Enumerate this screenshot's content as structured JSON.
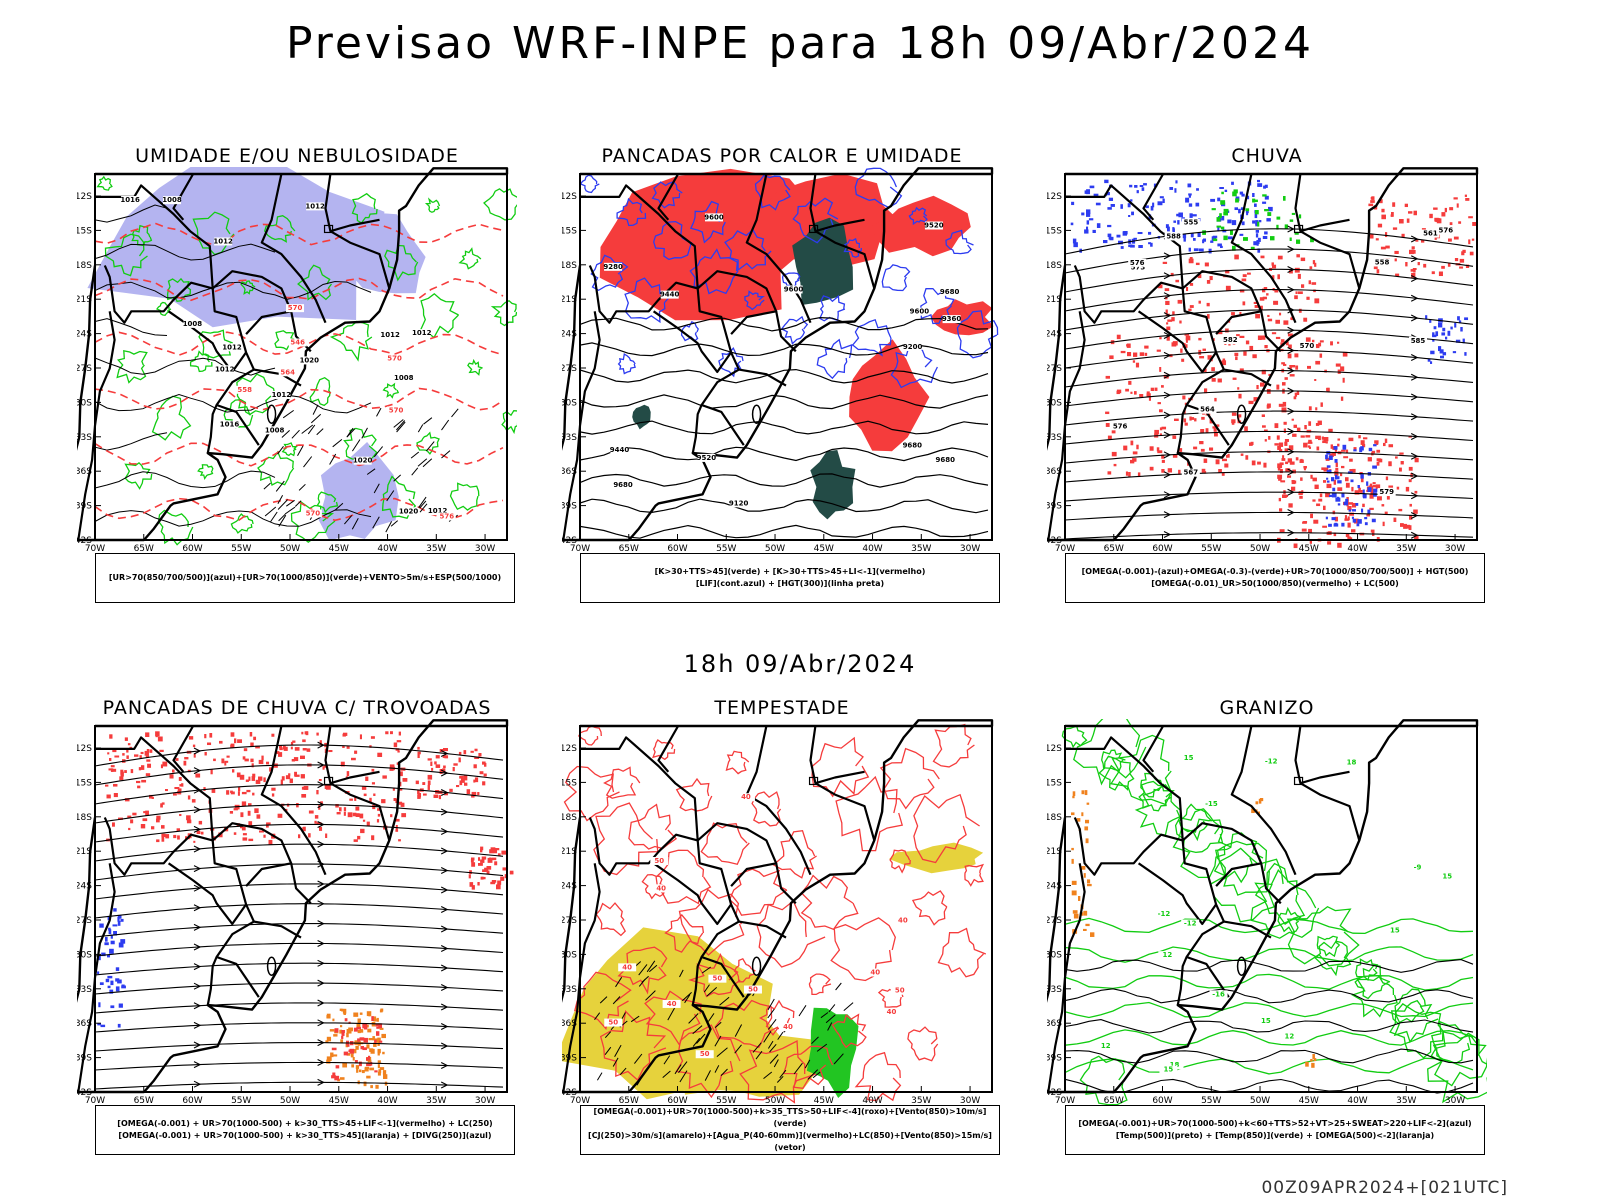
{
  "page": {
    "main_title": "Previsao WRF-INPE  para 18h 09/Abr/2024",
    "mid_title": "18h 09/Abr/2024",
    "footer_code": "00Z09APR2024+[021UTC]"
  },
  "axes": {
    "lat_labels": [
      "12S",
      "15S",
      "18S",
      "21S",
      "24S",
      "27S",
      "30S",
      "33S",
      "36S",
      "39S",
      "42S"
    ],
    "lon_labels": [
      "70W",
      "65W",
      "60W",
      "55W",
      "50W",
      "45W",
      "40W",
      "35W",
      "30W"
    ]
  },
  "colors": {
    "humidity_blue": "#b4b4f0",
    "green_contour": "#11cc11",
    "red": "#f53c3c",
    "dark_teal": "#234b46",
    "blue_contour": "#2d3cf0",
    "yellow": "#e6d23c",
    "orange": "#f0821e",
    "black": "#000000"
  },
  "panels": [
    {
      "id": "umidade",
      "title": "UMIDADE E/OU NEBULOSIDADE",
      "legend": [
        "[UR>70(850/700/500)](azul)+[UR>70(1000/850)](verde)+VENTO>5m/s+ESP(500/1000)"
      ],
      "contour_labels": [
        "1012",
        "1008",
        "1008",
        "1008",
        "1012",
        "1012",
        "1008",
        "1012",
        "1016",
        "1012",
        "1012",
        "1012",
        "1016",
        "1020",
        "1012",
        "1020",
        "1020",
        "570",
        "576",
        "570",
        "570",
        "570",
        "564",
        "558",
        "546"
      ]
    },
    {
      "id": "pancadas-calor",
      "title": "PANCADAS POR CALOR E UMIDADE",
      "legend": [
        "[K>30+TTS>45](verde) + [K>30+TTS>45+LI<-1](vermelho)",
        "[LIF](cont.azul) + [HGT(300)](linha preta)"
      ],
      "contour_labels": [
        "9680",
        "9680",
        "9680",
        "9600",
        "9680",
        "9600",
        "9600",
        "9520",
        "9520",
        "9440",
        "9360",
        "9280",
        "9200",
        "9120",
        "9440"
      ]
    },
    {
      "id": "chuva",
      "title": "CHUVA",
      "legend": [
        "[OMEGA(-0.001)-(azul)+OMEGA(-0.3)-(verde)+UR>70(1000/850/700/500)] + HGT(500)",
        "[OMEGA(-0.01)_UR>50(1000/850)(vermelho) + LC(500)"
      ],
      "contour_labels": [
        "588",
        "585",
        "582",
        "579",
        "576",
        "573",
        "570",
        "567",
        "564",
        "561",
        "558",
        "555",
        "576",
        "576"
      ]
    },
    {
      "id": "pancadas-trovoadas",
      "title": "PANCADAS DE CHUVA C/ TROVOADAS",
      "legend": [
        "[OMEGA(-0.001) + UR>70(1000-500) + k>30_TTS>45+LIF<-1](vermelho) + LC(250)",
        "[OMEGA(-0.001) + UR>70(1000-500) + k>30_TTS>45](laranja) + [DIVG(250)](azul)"
      ],
      "contour_labels": []
    },
    {
      "id": "tempestade",
      "title": "TEMPESTADE",
      "legend": [
        "[OMEGA(-0.001)+UR>70(1000-500)+k>35_TTS>50+LIF<-4](roxo)+[Vento(850)>10m/s](verde)",
        "[CJ(250)>30m/s](amarelo)+[Agua_P(40-60mm)](vermelho)+LC(850)+[Vento(850)>15m/s](vetor)"
      ],
      "contour_labels": [
        "50",
        "50",
        "50",
        "40",
        "50",
        "40",
        "40",
        "50",
        "40",
        "50",
        "40",
        "40",
        "40",
        "40"
      ]
    },
    {
      "id": "granizo",
      "title": "GRANIZO",
      "legend": [
        "[OMEGA(-0.001)+UR>70(1000-500)+k<60+TTS>52+VT>25+SWEAT>220+LIF<-2](azul)",
        "[Temp(500)](preto) + [Temp(850)](verde) + [OMEGA(500)<-2](laranja)"
      ],
      "contour_labels": [
        "15",
        "18",
        "18",
        "15",
        "15",
        "15",
        "12",
        "15",
        "12",
        "-9",
        "-12",
        "-12",
        "-15",
        "-16",
        "-12",
        "12"
      ]
    }
  ]
}
